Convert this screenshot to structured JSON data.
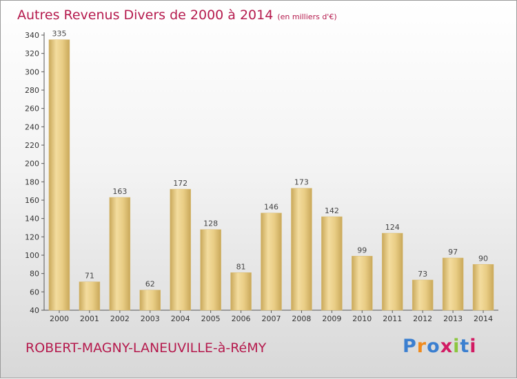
{
  "title": "Autres Revenus Divers de 2000 à 2014",
  "title_unit": "(en milliers d'€)",
  "location": "ROBERT-MAGNY-LANEUVILLE-à-RéMY",
  "brand": {
    "text": "Proxiti",
    "colors": [
      "#3b7fd0",
      "#f08a1c",
      "#3b7fd0",
      "#d21b63",
      "#8cc63f",
      "#3b7fd0",
      "#d21b63"
    ]
  },
  "chart_data": {
    "type": "bar",
    "categories": [
      "2000",
      "2001",
      "2002",
      "2003",
      "2004",
      "2005",
      "2006",
      "2007",
      "2008",
      "2009",
      "2010",
      "2011",
      "2012",
      "2013",
      "2014"
    ],
    "values": [
      335,
      71,
      163,
      62,
      172,
      128,
      81,
      146,
      173,
      142,
      99,
      124,
      73,
      97,
      90
    ],
    "ylim": [
      40,
      340
    ],
    "yticks": [
      40,
      60,
      80,
      100,
      120,
      140,
      160,
      180,
      200,
      220,
      240,
      260,
      280,
      300,
      320,
      340
    ],
    "grid": false,
    "bar_color": "#e2c47c"
  }
}
